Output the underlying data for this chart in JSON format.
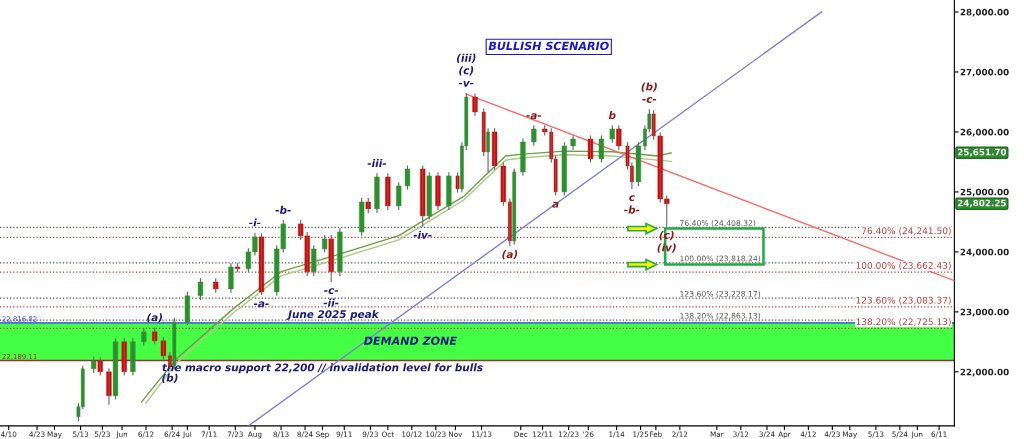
{
  "chart_data": {
    "type": "candlestick",
    "title": "BULLISH SCENARIO",
    "x": [
      "2025-05-12",
      "2025-05-14",
      "2025-05-19",
      "2025-05-22",
      "2025-05-26",
      "2025-05-29",
      "2025-06-02",
      "2025-06-06",
      "2025-06-11",
      "2025-06-16",
      "2025-06-20",
      "2025-06-23",
      "2025-06-25",
      "2025-07-01",
      "2025-07-07",
      "2025-07-14",
      "2025-07-21",
      "2025-07-24",
      "2025-07-29",
      "2025-08-01",
      "2025-08-04",
      "2025-08-11",
      "2025-08-14",
      "2025-08-22",
      "2025-08-25",
      "2025-08-28",
      "2025-09-02",
      "2025-09-05",
      "2025-09-09",
      "2025-09-19",
      "2025-09-22",
      "2025-09-26",
      "2025-10-01",
      "2025-10-06",
      "2025-10-10",
      "2025-10-17",
      "2025-10-20",
      "2025-10-24",
      "2025-10-29",
      "2025-11-02",
      "2025-11-04",
      "2025-11-06",
      "2025-11-10",
      "2025-11-14",
      "2025-11-16",
      "2025-11-19",
      "2025-11-23",
      "2025-11-26",
      "2025-11-28",
      "2025-12-02",
      "2025-12-07",
      "2025-12-12",
      "2025-12-15",
      "2025-12-17",
      "2025-12-21",
      "2025-12-25",
      "2026-01-02",
      "2026-01-07",
      "2026-01-12",
      "2026-01-15",
      "2026-01-19",
      "2026-01-21",
      "2026-01-24",
      "2026-01-27",
      "2026-01-29",
      "2026-01-31",
      "2026-02-03",
      "2026-02-06"
    ],
    "ohlc": [
      [
        21250,
        21480,
        21180,
        21417
      ],
      [
        21417,
        22100,
        21380,
        22050
      ],
      [
        22050,
        22250,
        21980,
        22183
      ],
      [
        22183,
        22240,
        21940,
        22000
      ],
      [
        22000,
        22060,
        21450,
        21600
      ],
      [
        21600,
        22560,
        21540,
        22500
      ],
      [
        22500,
        22560,
        21940,
        22000
      ],
      [
        22000,
        22560,
        21940,
        22500
      ],
      [
        22500,
        22730,
        22440,
        22667
      ],
      [
        22667,
        22740,
        22460,
        22517
      ],
      [
        22517,
        22580,
        22200,
        22267
      ],
      [
        22267,
        22330,
        22040,
        22100
      ],
      [
        22100,
        22900,
        22040,
        22833
      ],
      [
        22833,
        23330,
        22780,
        23267
      ],
      [
        23267,
        23560,
        23200,
        23500
      ],
      [
        23500,
        23560,
        23320,
        23383
      ],
      [
        23383,
        23810,
        23320,
        23750
      ],
      [
        23750,
        23810,
        23660,
        23717
      ],
      [
        23717,
        24060,
        23660,
        24000
      ],
      [
        24000,
        24320,
        23940,
        24250
      ],
      [
        24250,
        24310,
        23280,
        23333
      ],
      [
        23333,
        24110,
        23270,
        24050
      ],
      [
        24050,
        24530,
        23990,
        24467
      ],
      [
        24467,
        24530,
        24200,
        24267
      ],
      [
        24267,
        24330,
        23600,
        23667
      ],
      [
        23667,
        24110,
        23600,
        24050
      ],
      [
        24050,
        24280,
        23990,
        24217
      ],
      [
        24217,
        24280,
        23500,
        23667
      ],
      [
        23667,
        24400,
        23600,
        24333
      ],
      [
        24333,
        24900,
        24270,
        24833
      ],
      [
        24833,
        24900,
        24650,
        24717
      ],
      [
        24717,
        25310,
        24650,
        25250
      ],
      [
        25250,
        25310,
        24700,
        24767
      ],
      [
        24767,
        25160,
        24700,
        25100
      ],
      [
        25100,
        25440,
        25040,
        25383
      ],
      [
        25383,
        25440,
        24420,
        24600
      ],
      [
        24600,
        25330,
        24540,
        25267
      ],
      [
        25267,
        25330,
        24700,
        24767
      ],
      [
        24767,
        25330,
        24700,
        25267
      ],
      [
        25267,
        25330,
        24990,
        25050
      ],
      [
        25050,
        25830,
        24990,
        25767
      ],
      [
        25767,
        26650,
        25700,
        26583
      ],
      [
        26583,
        26640,
        26270,
        26333
      ],
      [
        26333,
        26390,
        25600,
        25667
      ],
      [
        25667,
        26060,
        25320,
        26000
      ],
      [
        26000,
        26060,
        25370,
        25433
      ],
      [
        25433,
        25490,
        24770,
        24833
      ],
      [
        24833,
        24890,
        24100,
        24183
      ],
      [
        24183,
        25390,
        24120,
        25333
      ],
      [
        25333,
        25890,
        25270,
        25833
      ],
      [
        25833,
        26110,
        25770,
        26050
      ],
      [
        26050,
        26110,
        25940,
        26000
      ],
      [
        26000,
        26060,
        25490,
        25550
      ],
      [
        25550,
        25610,
        24940,
        25000
      ],
      [
        25000,
        25830,
        24940,
        25767
      ],
      [
        25767,
        25940,
        25700,
        25883
      ],
      [
        25883,
        25940,
        25490,
        25550
      ],
      [
        25550,
        25940,
        25490,
        25883
      ],
      [
        25883,
        26110,
        25820,
        26050
      ],
      [
        26050,
        26110,
        25700,
        25767
      ],
      [
        25767,
        25830,
        25370,
        25433
      ],
      [
        25433,
        25490,
        25050,
        25167
      ],
      [
        25167,
        25830,
        25100,
        25767
      ],
      [
        25767,
        26110,
        25700,
        26050
      ],
      [
        26050,
        26380,
        25990,
        26300
      ],
      [
        26300,
        26360,
        25870,
        25933
      ],
      [
        25933,
        25990,
        24820,
        24883
      ],
      [
        24883,
        24940,
        24420,
        24802.25
      ]
    ],
    "colors": [
      "#1e9e1e",
      "#1e9e1e",
      "#1e9e1e",
      "#e00000",
      "#e00000",
      "#1e9e1e",
      "#e00000",
      "#1e9e1e",
      "#1e9e1e",
      "#e00000",
      "#e00000",
      "#e00000",
      "#1e9e1e",
      "#1e9e1e",
      "#1e9e1e",
      "#e00000",
      "#1e9e1e",
      "#e00000",
      "#1e9e1e",
      "#1e9e1e",
      "#e00000",
      "#1e9e1e",
      "#1e9e1e",
      "#e00000",
      "#e00000",
      "#1e9e1e",
      "#1e9e1e",
      "#e00000",
      "#1e9e1e",
      "#1e9e1e",
      "#e00000",
      "#1e9e1e",
      "#e00000",
      "#1e9e1e",
      "#1e9e1e",
      "#e00000",
      "#1e9e1e",
      "#e00000",
      "#1e9e1e",
      "#e00000",
      "#1e9e1e",
      "#1e9e1e",
      "#e00000",
      "#e00000",
      "#1e9e1e",
      "#e00000",
      "#e00000",
      "#e00000",
      "#1e9e1e",
      "#1e9e1e",
      "#1e9e1e",
      "#e00000",
      "#e00000",
      "#e00000",
      "#1e9e1e",
      "#1e9e1e",
      "#e00000",
      "#1e9e1e",
      "#1e9e1e",
      "#e00000",
      "#e00000",
      "#e00000",
      "#1e9e1e",
      "#1e9e1e",
      "#1e9e1e",
      "#e00000",
      "#e00000",
      "#e00000"
    ],
    "series": [
      {
        "type": "line",
        "color": "#6f9f45",
        "x": [
          "2025-06-10",
          "2025-06-26",
          "2025-07-22",
          "2025-08-13",
          "2025-09-05",
          "2025-10-06",
          "2025-11-05",
          "2025-11-24",
          "2025-12-02",
          "2025-12-21",
          "2026-01-12",
          "2026-02-02",
          "2026-02-08"
        ],
        "values": [
          21500,
          22220,
          23050,
          23670,
          23920,
          24270,
          24930,
          25600,
          25630,
          25680,
          25670,
          25600,
          25650
        ]
      },
      {
        "type": "line",
        "color": "#a9c985",
        "x": [
          "2025-06-12",
          "2025-06-26",
          "2025-07-22",
          "2025-08-13",
          "2025-09-05",
          "2025-10-06",
          "2025-11-05",
          "2025-11-24",
          "2025-12-02",
          "2025-12-21",
          "2026-01-12",
          "2026-02-02",
          "2026-02-08"
        ],
        "values": [
          21480,
          22150,
          22980,
          23600,
          23850,
          24200,
          24870,
          25530,
          25570,
          25620,
          25600,
          25530,
          25510
        ]
      },
      {
        "type": "line",
        "color": "#8080d0",
        "x": [
          "2025-07-29",
          "2026-04-18"
        ],
        "values": [
          21100,
          28000
        ]
      },
      {
        "type": "line",
        "color": "#ff6a6a",
        "x": [
          "2025-11-06",
          "2026-06-18"
        ],
        "values": [
          26630,
          23520
        ]
      }
    ],
    "xlim": [
      "2025-04-06",
      "2026-06-18"
    ],
    "xticks": [
      {
        "value": "2025-04-10",
        "label": "4/10"
      },
      {
        "value": "2025-04-23",
        "label": "4/23"
      },
      {
        "value": "2025-05-01",
        "label": "May"
      },
      {
        "value": "2025-05-13",
        "label": "5/13"
      },
      {
        "value": "2025-05-23",
        "label": "5/23"
      },
      {
        "value": "2025-06-01",
        "label": "Jun"
      },
      {
        "value": "2025-06-12",
        "label": "6/12"
      },
      {
        "value": "2025-06-24",
        "label": "6/24"
      },
      {
        "value": "2025-07-01",
        "label": "Jul"
      },
      {
        "value": "2025-07-11",
        "label": "7/11"
      },
      {
        "value": "2025-07-23",
        "label": "7/23"
      },
      {
        "value": "2025-08-01",
        "label": "Aug"
      },
      {
        "value": "2025-08-13",
        "label": "8/13"
      },
      {
        "value": "2025-08-24",
        "label": "8/24"
      },
      {
        "value": "2025-09-01",
        "label": "Sep"
      },
      {
        "value": "2025-09-11",
        "label": "9/11"
      },
      {
        "value": "2025-09-23",
        "label": "9/23"
      },
      {
        "value": "2025-10-01",
        "label": "Oct"
      },
      {
        "value": "2025-10-12",
        "label": "10/12"
      },
      {
        "value": "2025-10-23",
        "label": "10/23"
      },
      {
        "value": "2025-11-01",
        "label": "Nov"
      },
      {
        "value": "2025-11-13",
        "label": "11/13"
      },
      {
        "value": "2025-12-01",
        "label": "Dec"
      },
      {
        "value": "2025-12-11",
        "label": "12/11"
      },
      {
        "value": "2025-12-23",
        "label": "12/23"
      },
      {
        "value": "2026-01-01",
        "label": "'26"
      },
      {
        "value": "2026-01-14",
        "label": "1/14"
      },
      {
        "value": "2026-01-25",
        "label": "1/25"
      },
      {
        "value": "2026-02-01",
        "label": "Feb"
      },
      {
        "value": "2026-02-12",
        "label": "2/12"
      },
      {
        "value": "2026-03-01",
        "label": "Mar"
      },
      {
        "value": "2026-03-12",
        "label": "3/12"
      },
      {
        "value": "2026-03-24",
        "label": "3/24"
      },
      {
        "value": "2026-04-01",
        "label": "Apr"
      },
      {
        "value": "2026-04-12",
        "label": "4/12"
      },
      {
        "value": "2026-04-23",
        "label": "4/23"
      },
      {
        "value": "2026-05-01",
        "label": "May"
      },
      {
        "value": "2026-05-13",
        "label": "5/13"
      },
      {
        "value": "2026-05-24",
        "label": "5/24"
      },
      {
        "value": "2026-06-01",
        "label": "Jun"
      },
      {
        "value": "2026-06-11",
        "label": "6/11"
      }
    ],
    "ylim": [
      21100,
      28200
    ],
    "yticks": [
      {
        "value": 22000,
        "label": "22,000.00"
      },
      {
        "value": 23000,
        "label": "23,000.00"
      },
      {
        "value": 24000,
        "label": "24,000.00"
      },
      {
        "value": 25000,
        "label": "25,000.00"
      },
      {
        "value": 26000,
        "label": "26,000.00"
      },
      {
        "value": 27000,
        "label": "27,000.00"
      },
      {
        "value": 28000,
        "label": "28,000.00"
      }
    ],
    "ref_lines": [
      {
        "axis": "y",
        "value": 24408.32,
        "label": "76.40% (24,408.32)",
        "color": "#555555",
        "line_style": "dotted"
      },
      {
        "axis": "y",
        "value": 24241.5,
        "label": "76.40% (24,241.50)",
        "color": "#c04040",
        "line_style": "dotted"
      },
      {
        "axis": "y",
        "value": 23818.24,
        "label": "100.00% (23,818.24)",
        "color": "#555555",
        "line_style": "dotted"
      },
      {
        "axis": "y",
        "value": 23662.43,
        "label": "100.00% (23,662.43)",
        "color": "#c04040",
        "line_style": "dotted"
      },
      {
        "axis": "y",
        "value": 23228.17,
        "label": "123.60% (23,228.17)",
        "color": "#555555",
        "line_style": "dotted"
      },
      {
        "axis": "y",
        "value": 23083.37,
        "label": "123.60% (23,083.37)",
        "color": "#c04040",
        "line_style": "dotted"
      },
      {
        "axis": "y",
        "value": 22863.13,
        "label": "138.20% (22,863.13)",
        "color": "#555555",
        "line_style": "dotted"
      },
      {
        "axis": "y",
        "value": 22725.13,
        "label": "138.20% (22,725.13)",
        "color": "#c04040",
        "line_style": "dotted"
      },
      {
        "axis": "y",
        "value": 22816.82,
        "label": "22,816.82",
        "color": "#3333ff",
        "line_style": "solid"
      },
      {
        "axis": "y",
        "value": 22189.11,
        "label": "22,189.11",
        "color": "#a03030",
        "line_style": "solid"
      }
    ],
    "bands": [
      {
        "axis": "y",
        "from": 22189.11,
        "to": 22816.82,
        "color": "#44ff44"
      }
    ],
    "annotations": [
      {
        "text": "(a)",
        "x": "2025-06-16",
        "y": 22740
      },
      {
        "text": "(b)",
        "x": "2025-06-23",
        "y": 22040
      },
      {
        "text": "-i-",
        "x": "2025-08-01",
        "y": 24320
      },
      {
        "text": "-a-",
        "x": "2025-08-04",
        "y": 23280
      },
      {
        "text": "-b-",
        "x": "2025-08-14",
        "y": 24530
      },
      {
        "text": "-c-",
        "x": "2025-09-05",
        "y": 23500
      },
      {
        "text": "-ii-",
        "x": "2025-09-05",
        "y": 23500
      },
      {
        "text": "-iii-",
        "x": "2025-09-26",
        "y": 25310
      },
      {
        "text": "-iv-",
        "x": "2025-10-17",
        "y": 24420
      },
      {
        "text": "(iii)",
        "x": "2025-11-06",
        "y": 26650
      },
      {
        "text": "(c)",
        "x": "2025-11-06",
        "y": 26650
      },
      {
        "text": "-v-",
        "x": "2025-11-06",
        "y": 26650
      },
      {
        "text": "June 2025 peak",
        "x": "2025-09-06",
        "y": 22816.82
      },
      "DEMAND ZONE",
      {
        "text": "the macro support 22,200 // invalidation level for bulls",
        "x": "2025-09-01",
        "y": 22189.11
      },
      {
        "text": "(a)",
        "x": "2025-11-26",
        "y": 24100
      },
      {
        "text": "-a-",
        "x": "2025-12-07",
        "y": 26110
      },
      {
        "text": "a",
        "x": "2025-12-17",
        "y": 24940
      },
      {
        "text": "b",
        "x": "2026-01-12",
        "y": 26110
      },
      {
        "text": "c",
        "x": "2026-01-21",
        "y": 25050
      },
      {
        "text": "-b-",
        "x": "2026-01-21",
        "y": 25050
      },
      {
        "text": "(b)",
        "x": "2026-01-29",
        "y": 26380
      },
      {
        "text": "-c-",
        "x": "2026-01-29",
        "y": 26380
      },
      {
        "text": "(c)",
        "x": "2026-02-06",
        "y": 24420
      },
      {
        "text": "(iv)",
        "x": "2026-02-06",
        "y": 24420
      },
      "25,651.70",
      "24,802.25"
    ]
  }
}
